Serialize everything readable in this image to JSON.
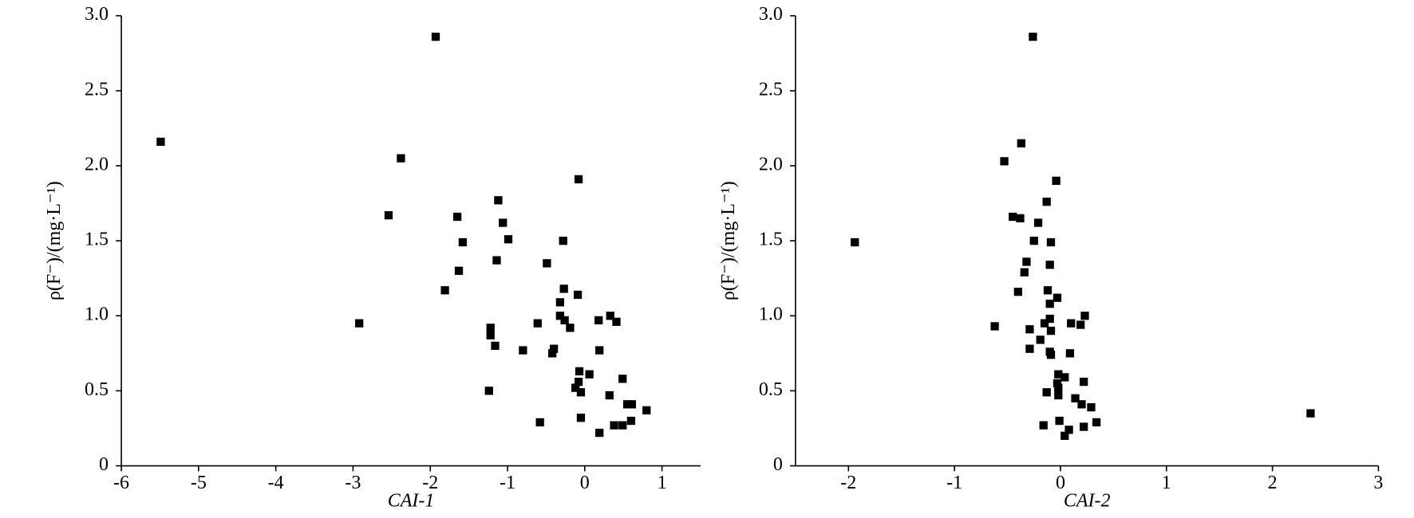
{
  "chart_data": [
    {
      "type": "scatter",
      "x_label": "CAI-1",
      "y_label": "ρ(F⁻)/(mg·L⁻¹)",
      "color": "#000000",
      "xlim": [
        -6,
        1.5
      ],
      "ylim": [
        0,
        3
      ],
      "xticks": [
        -6,
        -5,
        -4,
        -3,
        -2,
        -1,
        0,
        1
      ],
      "yticks": [
        0,
        0.5,
        {
          "value": 1,
          "label": "1.0"
        },
        1.5,
        {
          "value": 2,
          "label": "2.0"
        },
        2.5,
        {
          "value": 3,
          "label": "3.0"
        }
      ],
      "x": [
        -5.49,
        -1.93,
        -2.38,
        -2.54,
        -2.92,
        -1.65,
        -1.58,
        -1.63,
        -1.81,
        -1.12,
        -1.06,
        -0.99,
        -1.14,
        -0.08,
        -0.28,
        -0.49,
        -0.27,
        -0.09,
        -0.32,
        -0.32,
        -0.26,
        -0.19,
        -0.61,
        -1.22,
        -1.22,
        -1.16,
        -0.8,
        -0.4,
        -0.42,
        0.19,
        0.18,
        0.33,
        0.41,
        -0.07,
        0.06,
        -0.08,
        -0.12,
        -0.05,
        -1.24,
        0.49,
        0.32,
        0.55,
        0.61,
        0.8,
        0.6,
        -0.05,
        -0.58,
        0.19,
        0.38,
        0.49
      ],
      "values": [
        2.16,
        2.86,
        2.05,
        1.67,
        0.95,
        1.66,
        1.49,
        1.3,
        1.17,
        1.77,
        1.62,
        1.51,
        1.37,
        1.91,
        1.5,
        1.35,
        1.18,
        1.14,
        1.09,
        1.0,
        0.97,
        0.92,
        0.95,
        0.92,
        0.87,
        0.8,
        0.77,
        0.78,
        0.75,
        0.77,
        0.97,
        1.0,
        0.96,
        0.63,
        0.61,
        0.56,
        0.52,
        0.49,
        0.5,
        0.58,
        0.47,
        0.41,
        0.41,
        0.37,
        0.3,
        0.32,
        0.29,
        0.22,
        0.27,
        0.27
      ]
    },
    {
      "type": "scatter",
      "x_label": "CAI-2",
      "y_label": "ρ(F⁻)/(mg·L⁻¹)",
      "color": "#000000",
      "xlim": [
        -2.5,
        3
      ],
      "ylim": [
        0,
        3
      ],
      "xticks": [
        -2,
        -1,
        0,
        1,
        2,
        3
      ],
      "yticks": [
        0,
        0.5,
        {
          "value": 1,
          "label": "1.0"
        },
        1.5,
        {
          "value": 2,
          "label": "2.0"
        },
        2.5,
        {
          "value": 3,
          "label": "3.0"
        }
      ],
      "x": [
        -0.26,
        -0.37,
        -0.53,
        -0.04,
        -1.94,
        -0.13,
        -0.21,
        -0.45,
        -0.38,
        -0.25,
        -0.09,
        -0.32,
        -0.1,
        -0.34,
        -0.4,
        -0.12,
        -0.03,
        -0.1,
        -0.1,
        0.23,
        0.1,
        0.19,
        -0.62,
        -0.29,
        -0.15,
        -0.09,
        -0.19,
        -0.29,
        -0.1,
        -0.09,
        0.09,
        -0.02,
        0.04,
        -0.03,
        -0.02,
        -0.02,
        -0.13,
        0.22,
        0.14,
        0.2,
        0.29,
        2.36,
        -0.01,
        0.34,
        0.22,
        -0.16,
        0.08,
        0.04
      ],
      "values": [
        2.86,
        2.15,
        2.03,
        1.9,
        1.49,
        1.76,
        1.62,
        1.66,
        1.65,
        1.5,
        1.49,
        1.36,
        1.34,
        1.29,
        1.16,
        1.17,
        1.12,
        1.08,
        0.98,
        1.0,
        0.95,
        0.94,
        0.93,
        0.91,
        0.95,
        0.9,
        0.84,
        0.78,
        0.76,
        0.74,
        0.75,
        0.61,
        0.59,
        0.55,
        0.52,
        0.47,
        0.49,
        0.56,
        0.45,
        0.41,
        0.39,
        0.35,
        0.3,
        0.29,
        0.26,
        0.27,
        0.24,
        0.2
      ]
    }
  ]
}
